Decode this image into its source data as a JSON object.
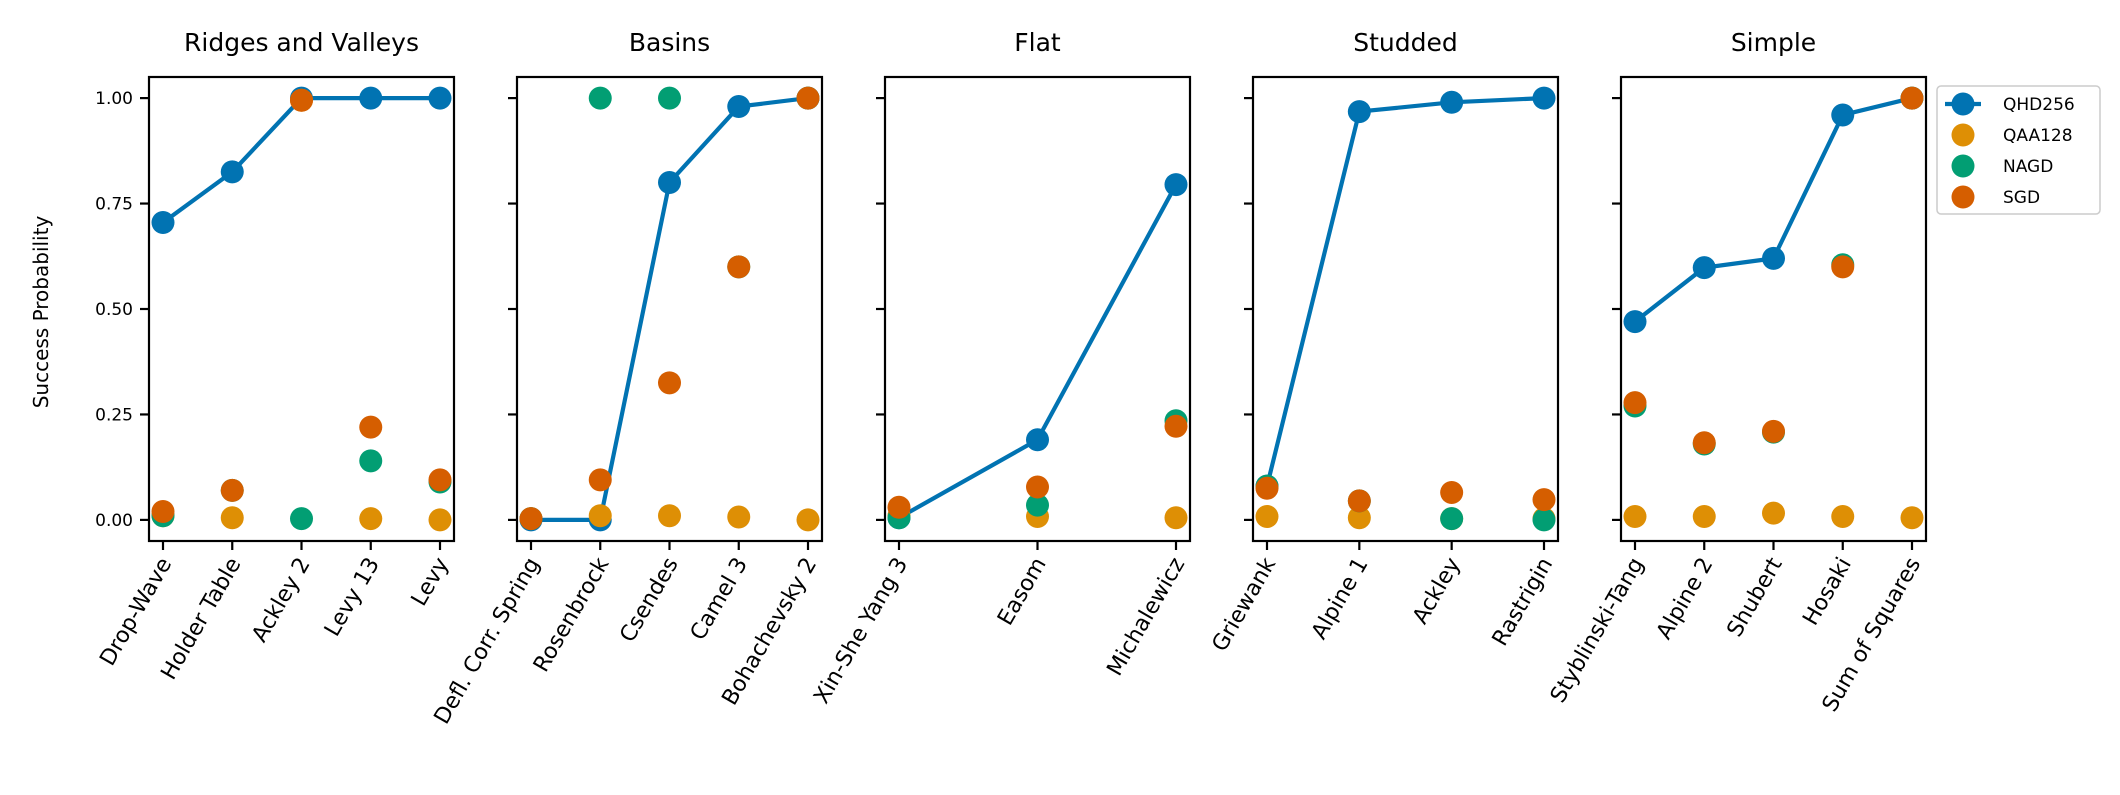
{
  "colors": {
    "QHD256": "#0173b2",
    "QAA128": "#de8f05",
    "NAGD": "#029e73",
    "SGD": "#d55e00"
  },
  "chart_data": {
    "type": "scatter",
    "ylabel": "Success Probability",
    "ylim": [
      -0.05,
      1.05
    ],
    "yticks": [
      "0.00",
      "0.25",
      "0.50",
      "0.75",
      "1.00"
    ],
    "legend": [
      "QHD256",
      "QAA128",
      "NAGD",
      "SGD"
    ],
    "legend_position": "right of last panel, top",
    "panels": [
      {
        "title": "Ridges and Valleys",
        "categories": [
          "Drop-Wave",
          "Holder Table",
          "Ackley 2",
          "Levy 13",
          "Levy"
        ],
        "series": {
          "QHD256": [
            0.705,
            0.825,
            1.0,
            1.0,
            1.0
          ],
          "QAA128": [
            0.01,
            0.005,
            0.995,
            0.003,
            0.0
          ],
          "NAGD": [
            0.01,
            0.07,
            0.003,
            0.14,
            0.09
          ],
          "SGD": [
            0.02,
            0.07,
            0.995,
            0.22,
            0.095
          ]
        }
      },
      {
        "title": "Basins",
        "categories": [
          "Defl. Corr. Spring",
          "Rosenbrock",
          "Csendes",
          "Camel 3",
          "Bohachevsky 2"
        ],
        "series": {
          "QHD256": [
            0.0,
            0.0,
            0.8,
            0.98,
            1.0
          ],
          "QAA128": [
            0.003,
            0.01,
            0.01,
            0.007,
            0.0
          ],
          "NAGD": [
            0.003,
            1.0,
            1.0,
            0.6,
            1.0
          ],
          "SGD": [
            0.003,
            0.095,
            0.325,
            0.6,
            1.0
          ]
        }
      },
      {
        "title": "Flat",
        "categories": [
          "Xin-She Yang 3",
          "Easom",
          "Michalewicz"
        ],
        "series": {
          "QHD256": [
            0.005,
            0.19,
            0.795
          ],
          "QAA128": [
            0.01,
            0.008,
            0.005
          ],
          "NAGD": [
            0.005,
            0.035,
            0.235
          ],
          "SGD": [
            0.03,
            0.078,
            0.222
          ]
        }
      },
      {
        "title": "Studded",
        "categories": [
          "Griewank",
          "Alpine 1",
          "Ackley",
          "Rastrigin"
        ],
        "series": {
          "QHD256": [
            0.08,
            0.968,
            0.99,
            1.0
          ],
          "QAA128": [
            0.008,
            0.005,
            0.003,
            0.003
          ],
          "NAGD": [
            0.08,
            0.045,
            0.003,
            0.0
          ],
          "SGD": [
            0.075,
            0.045,
            0.065,
            0.048
          ]
        }
      },
      {
        "title": "Simple",
        "categories": [
          "Styblinski-Tang",
          "Alpine 2",
          "Shubert",
          "Hosaki",
          "Sum of Squares"
        ],
        "series": {
          "QHD256": [
            0.47,
            0.598,
            0.62,
            0.96,
            1.0
          ],
          "QAA128": [
            0.008,
            0.008,
            0.016,
            0.008,
            0.005
          ],
          "NAGD": [
            0.27,
            0.18,
            0.208,
            0.605,
            1.0
          ],
          "SGD": [
            0.278,
            0.183,
            0.21,
            0.6,
            1.0
          ]
        }
      }
    ]
  }
}
